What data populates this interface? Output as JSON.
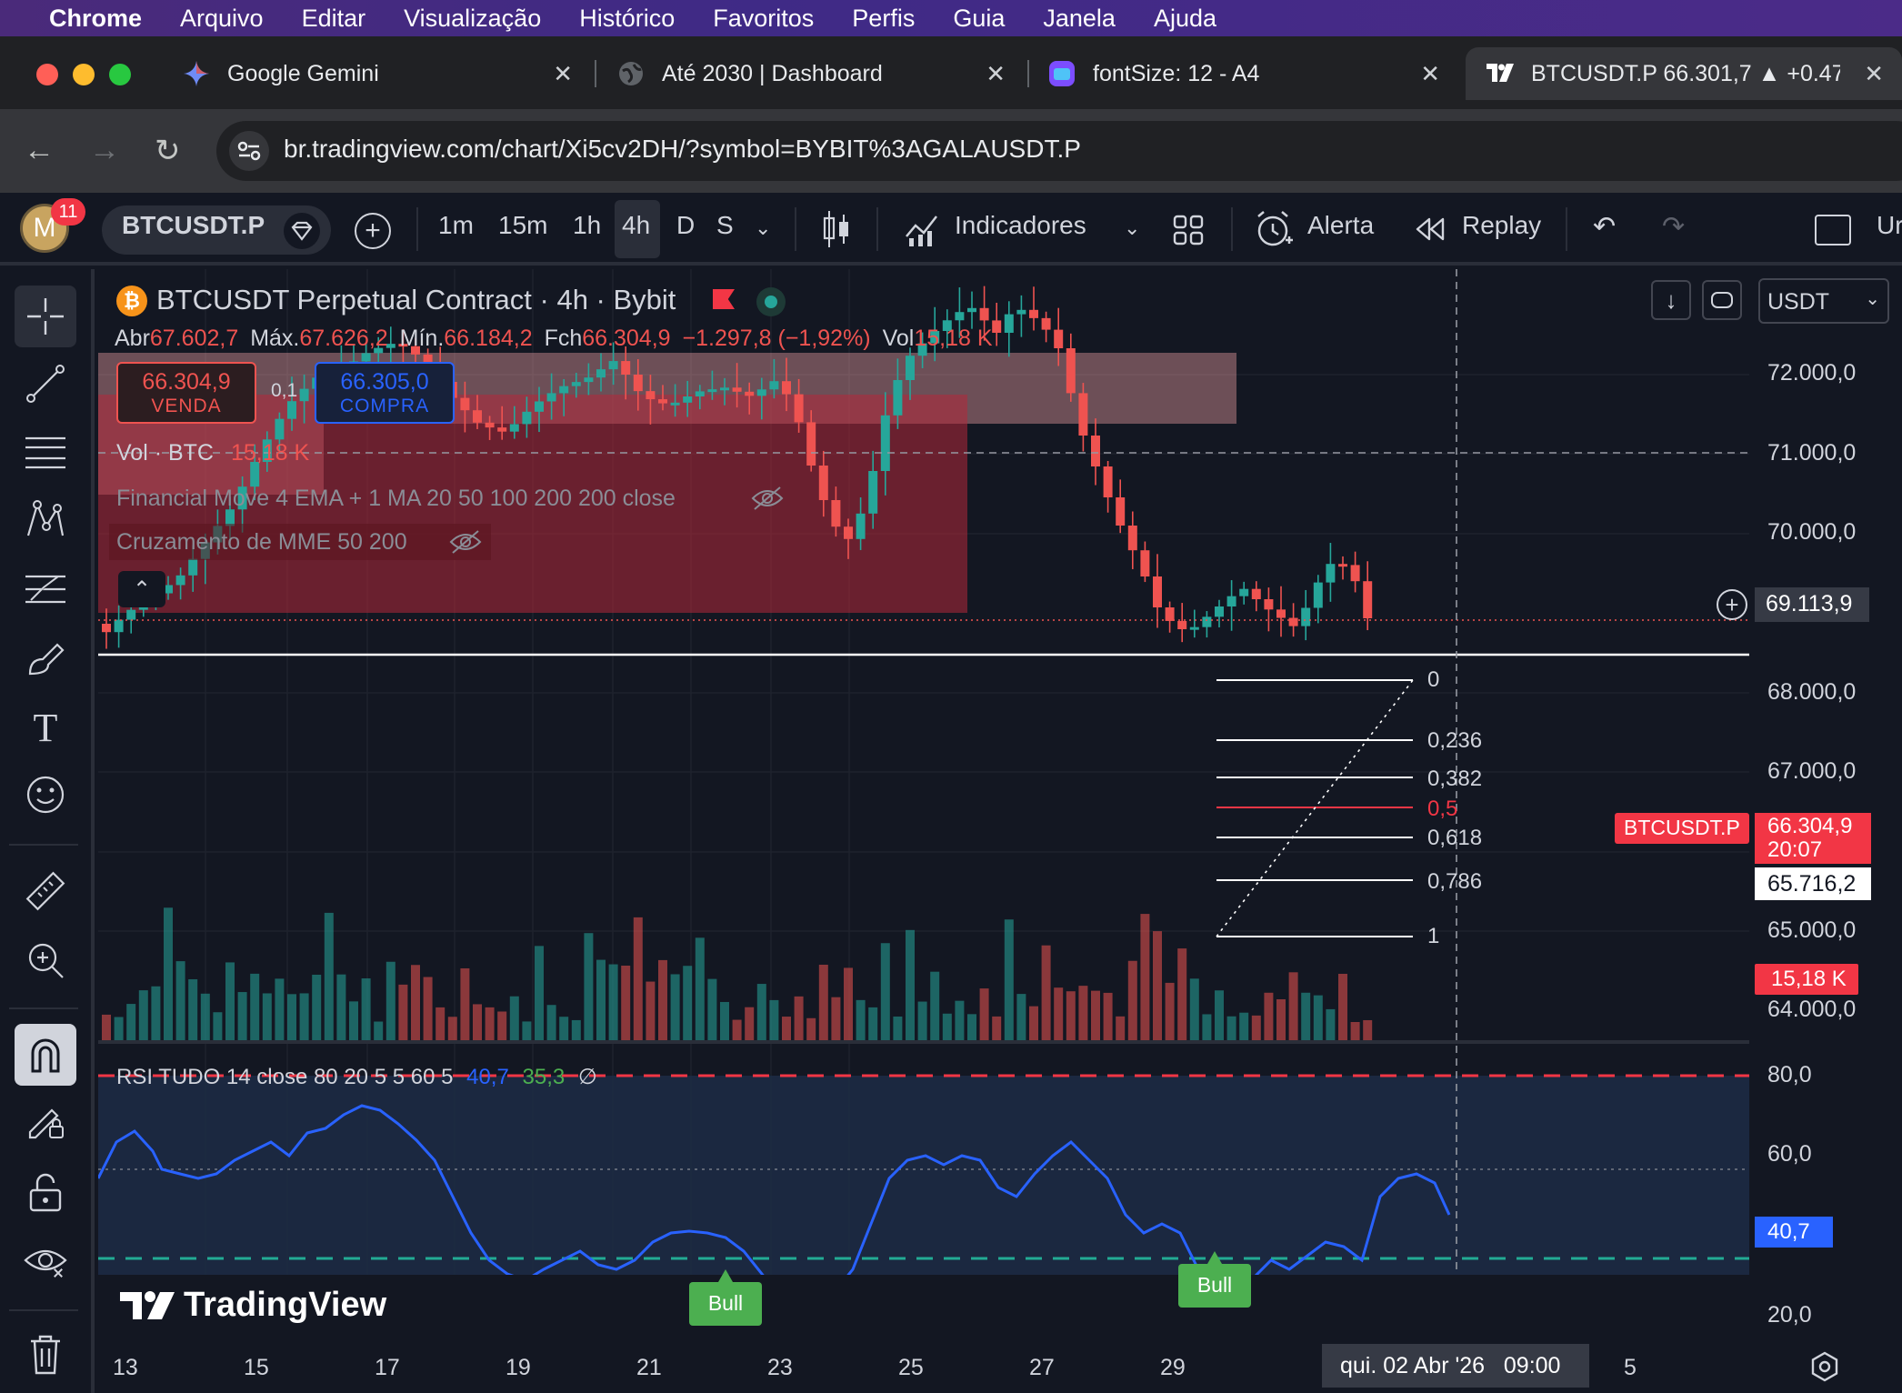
{
  "menubar": {
    "items": [
      "Chrome",
      "Arquivo",
      "Editar",
      "Visualização",
      "Histórico",
      "Favoritos",
      "Perfis",
      "Guia",
      "Janela",
      "Ajuda"
    ]
  },
  "tabs": [
    {
      "title": "Google Gemini",
      "icon": "gemini-icon"
    },
    {
      "title": "Até 2030 | Dashboard",
      "icon": "globe-icon"
    },
    {
      "title": "fontSize: 12 - A4",
      "icon": "app-icon"
    },
    {
      "title": "BTCUSDT.P 66.301,7 ▲ +0.47",
      "icon": "tradingview-icon",
      "active": true
    }
  ],
  "address": {
    "url": "br.tradingview.com/chart/Xi5cv2DH/?symbol=BYBIT%3AGALAUSDT.P"
  },
  "toolbar": {
    "avatar_letter": "M",
    "notification_count": "11",
    "symbol": "BTCUSDT.P",
    "intervals": [
      "1m",
      "15m",
      "1h",
      "4h",
      "D",
      "S"
    ],
    "active_interval": "4h",
    "indicators_label": "Indicadores",
    "alert_label": "Alerta",
    "replay_label": "Replay",
    "cut_text": "Ur"
  },
  "legend": {
    "title": "BTCUSDT Perpetual Contract · 4h · Bybit",
    "ohlc": {
      "open_label": "Abr",
      "open": "67.602,7",
      "high_label": "Máx.",
      "high": "67.626,2",
      "low_label": "Mín.",
      "low": "66.184,2",
      "close_label": "Fch",
      "close": "66.304,9",
      "change": "−1.297,8 (−1,92%)",
      "vol_label": "Vol",
      "vol": "15,18 K"
    },
    "sell_price": "66.304,9",
    "sell_label": "VENDA",
    "spread": "0,1",
    "buy_price": "66.305,0",
    "buy_label": "COMPRA",
    "vol_line_label": "Vol · BTC",
    "vol_line_value": "15,18 K",
    "indicator_1": "Financial Move 4 EMA + 1 MA 20 50 100 200 200 close",
    "indicator_2": "Cruzamento de MME 50 200"
  },
  "currency_select": "USDT",
  "price_axis": {
    "ticks": [
      "72.000,0",
      "71.000,0",
      "70.000,0",
      "68.000,0",
      "67.000,0",
      "65.000,0",
      "64.000,0"
    ],
    "crosshair_price": "69.113,9",
    "last_price": "66.304,9",
    "countdown": "20:07",
    "symbol_tag": "BTCUSDT.P",
    "hline_price": "65.716,2",
    "volume_tag": "15,18 K"
  },
  "fibonacci": [
    "0",
    "0,236",
    "0,382",
    "0,5",
    "0,618",
    "0,786",
    "1"
  ],
  "rsi": {
    "legend": "RSI TUDO 14 close 80 20 5 5 60 5",
    "value1": "40,7",
    "value2": "35,3",
    "symbol": "∅",
    "ticks": [
      "80,0",
      "60,0",
      "20,0"
    ],
    "current": "40,7",
    "signal_label": "Bull"
  },
  "time_axis": {
    "ticks": [
      "13",
      "15",
      "17",
      "19",
      "21",
      "23",
      "25",
      "27",
      "29",
      "5"
    ],
    "crosshair_time": "qui. 02 Abr '26   09:00"
  },
  "watermark": "TradingView",
  "colors": {
    "bull": "#26a69a",
    "bear": "#ef5350",
    "rsi_line": "#2962ff",
    "fib_mid": "#f23645",
    "background": "#131722"
  }
}
